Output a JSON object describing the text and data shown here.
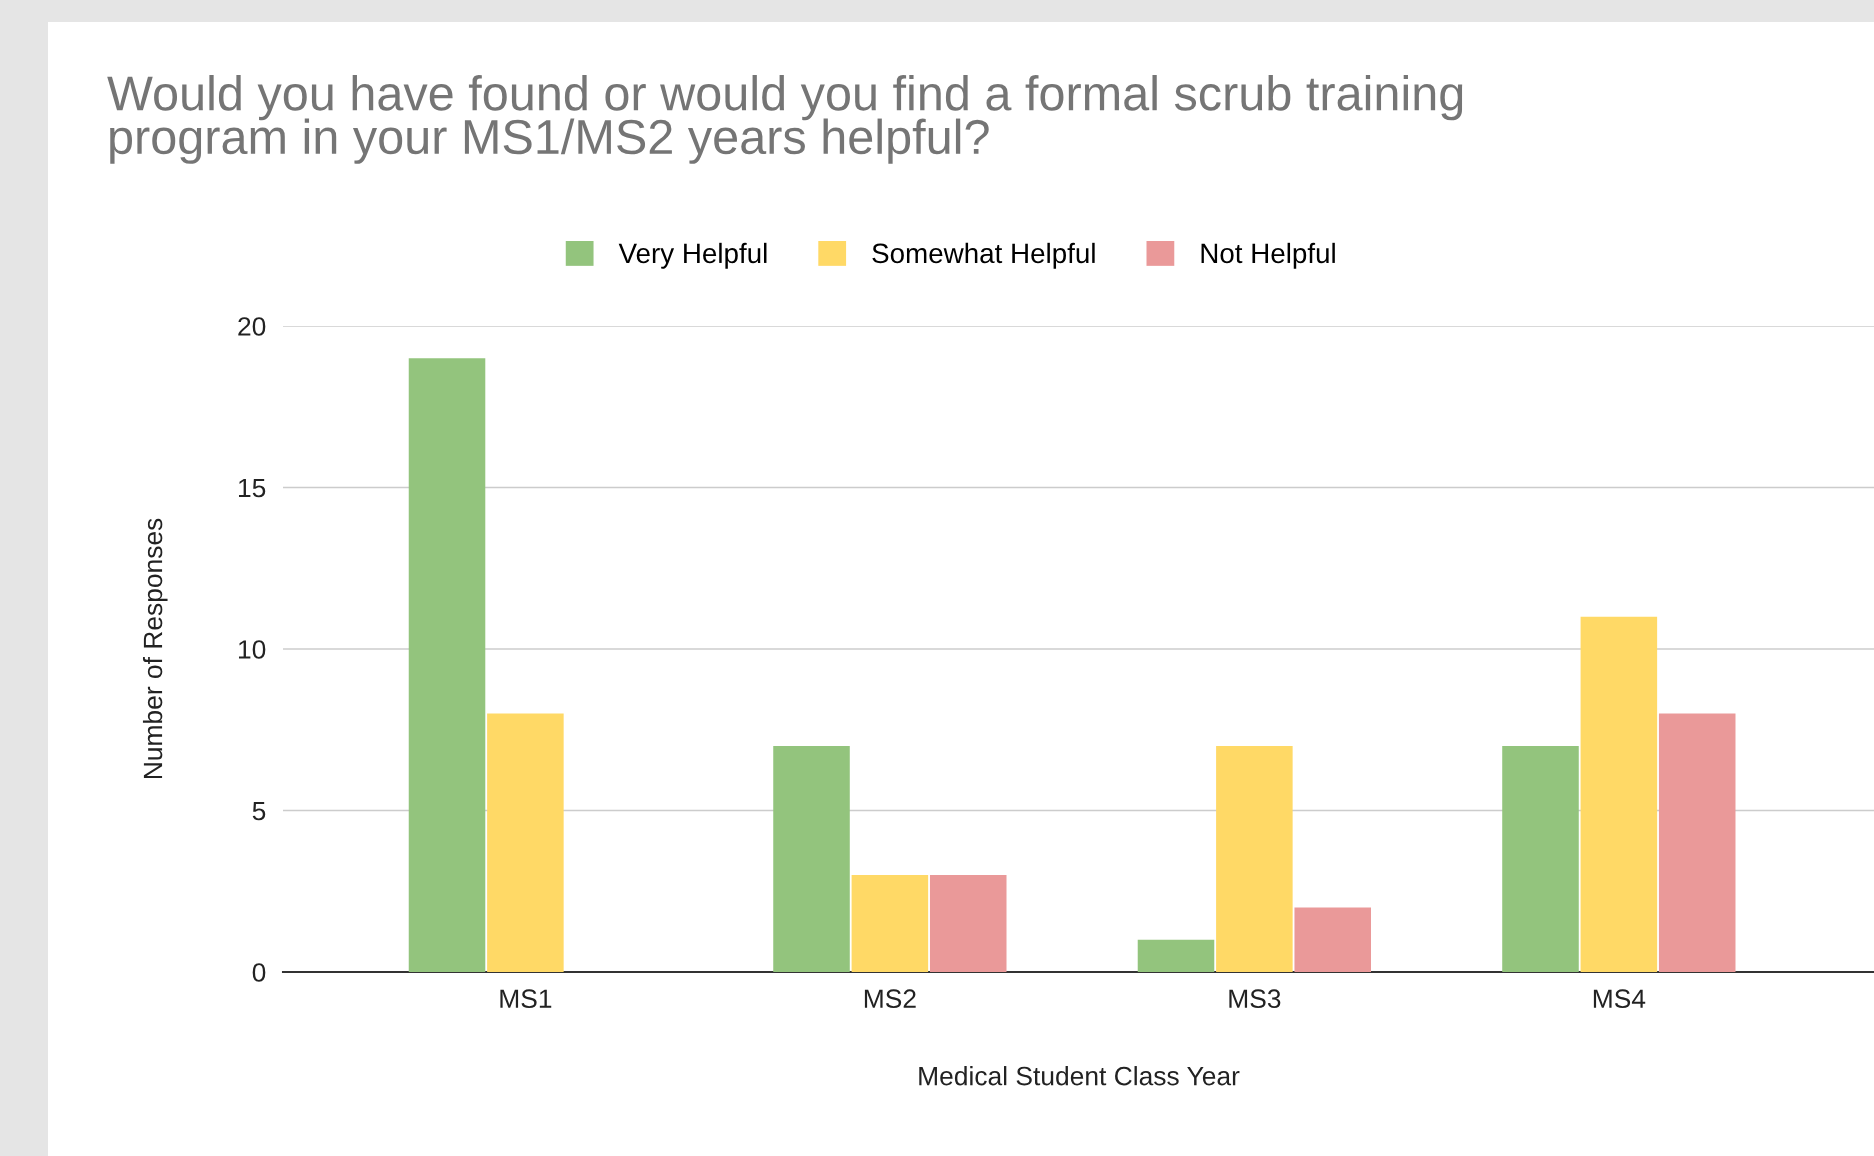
{
  "chart_data": {
    "type": "bar",
    "title": "Would you have found or would you find a formal scrub training\nprogram in your MS1/MS2 years helpful?",
    "xlabel": "Medical Student Class Year",
    "ylabel": "Number of Responses",
    "categories": [
      "MS1",
      "MS2",
      "MS3",
      "MS4"
    ],
    "series": [
      {
        "name": "Very Helpful",
        "color": "#93c47d",
        "values": [
          19,
          7,
          1,
          7
        ]
      },
      {
        "name": "Somewhat Helpful",
        "color": "#ffd966",
        "values": [
          8,
          3,
          7,
          11
        ]
      },
      {
        "name": "Not Helpful",
        "color": "#ea9999",
        "values": [
          0,
          3,
          2,
          8
        ]
      }
    ],
    "ylim": [
      0,
      20
    ],
    "yticks": [
      0,
      5,
      10,
      15,
      20
    ],
    "grid": "y",
    "legend": "top"
  }
}
